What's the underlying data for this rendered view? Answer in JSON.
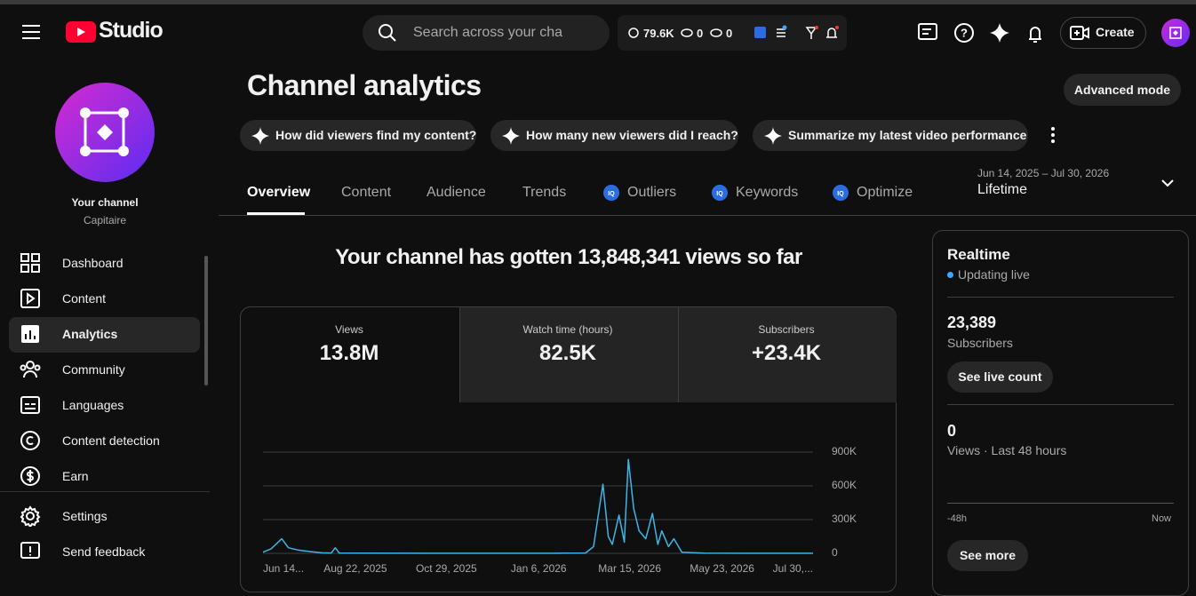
{
  "header": {
    "logo": "Studio",
    "search_placeholder": "Search across your cha",
    "stats": [
      "79.6K",
      "0",
      "0"
    ],
    "create": "Create"
  },
  "sidebar": {
    "channel_title": "Your channel",
    "channel_name": "Capitaire",
    "nav": [
      "Dashboard",
      "Content",
      "Analytics",
      "Community",
      "Languages",
      "Content detection",
      "Earn"
    ],
    "footer": [
      "Settings",
      "Send feedback"
    ]
  },
  "page": {
    "title": "Channel analytics",
    "advanced_mode": "Advanced mode",
    "prompts": [
      "How did viewers find my content?",
      "How many new viewers did I reach?",
      "Summarize my latest video performance"
    ],
    "tabs": [
      "Overview",
      "Content",
      "Audience",
      "Trends",
      "Outliers",
      "Keywords",
      "Optimize"
    ],
    "date_range": "Jun 14, 2025 – Jul 30, 2026",
    "period": "Lifetime",
    "headline": "Your channel has gotten 13,848,341 views so far",
    "metrics": [
      {
        "label": "Views",
        "value": "13.8M"
      },
      {
        "label": "Watch time (hours)",
        "value": "82.5K"
      },
      {
        "label": "Subscribers",
        "value": "+23.4K"
      }
    ]
  },
  "realtime": {
    "title": "Realtime",
    "status": "Updating live",
    "subscribers": "23,389",
    "subscribers_label": "Subscribers",
    "live_count_button": "See live count",
    "views": "0",
    "views_label": "Views · Last 48 hours",
    "range_start": "-48h",
    "range_end": "Now",
    "see_more": "See more"
  },
  "chart_data": {
    "type": "line",
    "color": "#3eb5e8",
    "grid": true,
    "xlim": [
      "2025-06-14",
      "2026-07-30"
    ],
    "ylim": [
      0,
      900000
    ],
    "yticks": [
      {
        "value": 900000,
        "label": "900K"
      },
      {
        "value": 600000,
        "label": "600K"
      },
      {
        "value": 300000,
        "label": "300K"
      },
      0
    ],
    "xticks": [
      {
        "value": "2025-06-14",
        "label": "Jun 14..."
      },
      {
        "value": "2025-08-22",
        "label": "Aug 22, 2025"
      },
      {
        "value": "2025-10-29",
        "label": "Oct 29, 2025"
      },
      {
        "value": "2026-01-06",
        "label": "Jan 6, 2026"
      },
      {
        "value": "2026-03-15",
        "label": "Mar 15, 2026"
      },
      {
        "value": "2026-05-23",
        "label": "May 23, 2026"
      },
      {
        "value": "2026-07-30",
        "label": "Jul 30,..."
      }
    ],
    "x": [
      "2025-06-14",
      "2025-06-20",
      "2025-06-28",
      "2025-07-03",
      "2025-07-10",
      "2025-07-20",
      "2025-07-28",
      "2025-08-04",
      "2025-08-07",
      "2025-08-10",
      "2025-09-01",
      "2025-10-15",
      "2025-12-01",
      "2026-01-20",
      "2026-02-10",
      "2026-02-16",
      "2026-02-23",
      "2026-02-27",
      "2026-03-02",
      "2026-03-07",
      "2026-03-11",
      "2026-03-14",
      "2026-03-18",
      "2026-03-22",
      "2026-03-27",
      "2026-04-01",
      "2026-04-05",
      "2026-04-08",
      "2026-04-13",
      "2026-04-17",
      "2026-04-23",
      "2026-05-10",
      "2026-06-10",
      "2026-07-30"
    ],
    "values": [
      10000,
      40000,
      130000,
      50000,
      30000,
      15000,
      5000,
      3000,
      50000,
      3000,
      2000,
      1000,
      1000,
      1000,
      3000,
      60000,
      615000,
      150000,
      80000,
      340000,
      100000,
      835000,
      400000,
      200000,
      130000,
      355000,
      80000,
      200000,
      60000,
      130000,
      10000,
      2000,
      1000,
      1000
    ]
  }
}
